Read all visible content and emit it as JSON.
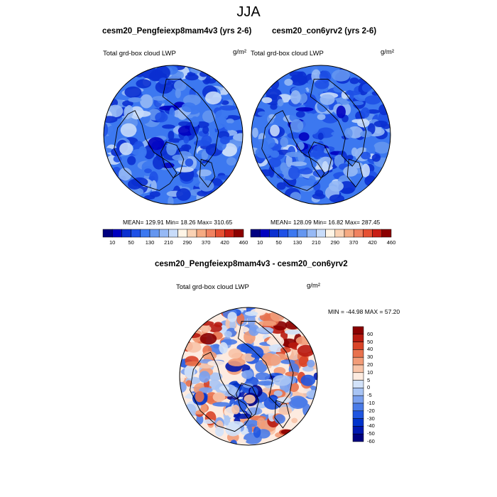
{
  "figure": {
    "main_title": "JJA",
    "colors": {
      "abs_palette": [
        "#000080",
        "#0000c0",
        "#0a2fd0",
        "#1e50e6",
        "#3c78f0",
        "#6496f0",
        "#96b9f5",
        "#c8dcfa",
        "#fff5e6",
        "#fad2b4",
        "#f5aa82",
        "#f08260",
        "#e65032",
        "#c81e14",
        "#8c0000"
      ],
      "diff_palette": [
        "#000080",
        "#0018b0",
        "#0033cc",
        "#1f55e0",
        "#4a7be8",
        "#7aa0ee",
        "#a8c4f4",
        "#d2e2f9",
        "#fdebe0",
        "#f8c4a8",
        "#f29c78",
        "#e8714d",
        "#d94428",
        "#b81a10",
        "#8a0000"
      ]
    }
  },
  "panels": [
    {
      "id": "case1",
      "title": "cesm20_Pengfeiexp8mam4v3 (yrs 2-6)",
      "left_label": "Total grd-box cloud LWP",
      "units": "g/m²",
      "stats": "MEAN= 129.91  Min=  18.26  Max= 310.65",
      "colorbar_ticks": [
        "10",
        "50",
        "130",
        "210",
        "290",
        "370",
        "420",
        "460"
      ]
    },
    {
      "id": "case2",
      "title": "cesm20_con6yrv2 (yrs 2-6)",
      "left_label": "Total grd-box cloud LWP",
      "units": "g/m²",
      "stats": "MEAN= 128.09  Min=  16.82  Max= 287.45",
      "colorbar_ticks": [
        "10",
        "50",
        "130",
        "210",
        "290",
        "370",
        "420",
        "460"
      ]
    }
  ],
  "difference": {
    "title": "cesm20_Pengfeiexp8mam4v3 - cesm20_con6yrv2",
    "left_label": "Total grd-box cloud LWP",
    "units": "g/m²",
    "stats": "MIN = -44.98 MAX =  57.20",
    "colorbar_ticks": [
      "60",
      "50",
      "40",
      "30",
      "20",
      "10",
      "5",
      "0",
      "-5",
      "-10",
      "-20",
      "-30",
      "-40",
      "-50",
      "-60"
    ]
  },
  "chart_data": [
    {
      "type": "heatmap",
      "title": "cesm20_Pengfeiexp8mam4v3 (yrs 2-6)",
      "subtitle": "Total grd-box cloud LWP",
      "units": "g/m2",
      "projection": "north polar stereographic",
      "mean": 129.91,
      "min": 18.26,
      "max": 310.65,
      "contour_levels": [
        10,
        50,
        130,
        210,
        290,
        370,
        420,
        460
      ]
    },
    {
      "type": "heatmap",
      "title": "cesm20_con6yrv2 (yrs 2-6)",
      "subtitle": "Total grd-box cloud LWP",
      "units": "g/m2",
      "projection": "north polar stereographic",
      "mean": 128.09,
      "min": 16.82,
      "max": 287.45,
      "contour_levels": [
        10,
        50,
        130,
        210,
        290,
        370,
        420,
        460
      ]
    },
    {
      "type": "heatmap",
      "title": "cesm20_Pengfeiexp8mam4v3 - cesm20_con6yrv2",
      "subtitle": "Total grd-box cloud LWP",
      "units": "g/m2",
      "projection": "north polar stereographic",
      "min": -44.98,
      "max": 57.2,
      "contour_levels": [
        -60,
        -50,
        -40,
        -30,
        -20,
        -10,
        -5,
        0,
        5,
        10,
        20,
        30,
        40,
        50,
        60
      ]
    }
  ]
}
